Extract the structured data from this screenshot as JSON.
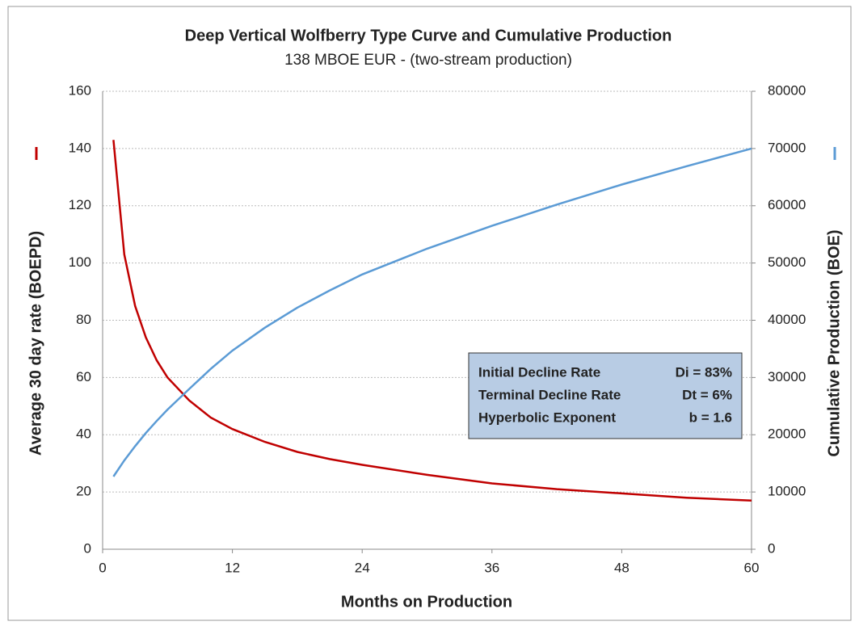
{
  "chart_data": {
    "type": "line",
    "title": "Deep Vertical Wolfberry Type Curve and Cumulative Production",
    "subtitle": "138 MBOE EUR - (two-stream production)",
    "x_label": "Months on Production",
    "y_label": "Average 30 day rate (BOEPD)",
    "y2_label": "Cumulative Production (BOE)",
    "x": [
      1,
      2,
      3,
      4,
      5,
      6,
      8,
      10,
      12,
      15,
      18,
      21,
      24,
      30,
      36,
      42,
      48,
      54,
      60
    ],
    "series": [
      {
        "name": "Average 30 day rate (BOEPD)",
        "color": "#c00000",
        "values": [
          143,
          103,
          85,
          74,
          66,
          60,
          52,
          46,
          42,
          37.5,
          34,
          31.5,
          29.5,
          26,
          23,
          21,
          19.5,
          18,
          17
        ]
      },
      {
        "name": "Cumulative Production (BOE)",
        "color": "#5b9bd5",
        "axis": "y2",
        "values": [
          12700,
          15500,
          18000,
          20300,
          22400,
          24400,
          28000,
          31500,
          34700,
          38700,
          42200,
          45200,
          48000,
          52500,
          56500,
          60200,
          63700,
          66900,
          70000
        ]
      }
    ],
    "xlim": [
      0,
      60
    ],
    "xticks": [
      0,
      12,
      24,
      36,
      48,
      60
    ],
    "ylim": [
      0,
      160
    ],
    "yticks": [
      0,
      20,
      40,
      60,
      80,
      100,
      120,
      140,
      160
    ],
    "y2lim": [
      0,
      80000
    ],
    "y2ticks": [
      0,
      10000,
      20000,
      30000,
      40000,
      50000,
      60000,
      70000,
      80000
    ],
    "grid": true,
    "annotations": [
      [
        "Initial Decline Rate",
        "Di = 83%"
      ],
      [
        "Terminal Decline Rate",
        "Dt = 6%"
      ],
      [
        "Hyperbolic Exponent",
        "b = 1.6"
      ]
    ]
  }
}
